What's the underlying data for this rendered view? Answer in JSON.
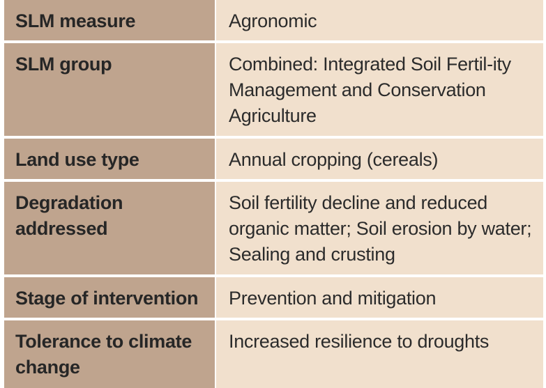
{
  "table": {
    "rows": [
      {
        "key": "SLM measure",
        "value": "Agronomic"
      },
      {
        "key": "SLM group",
        "value": "Combined: Integrated Soil Fertil-ity Management and Conservation Agriculture"
      },
      {
        "key": "Land use type",
        "value": "Annual cropping (cereals)"
      },
      {
        "key": "Degradation addressed",
        "value": "Soil fertility decline and reduced organic matter; Soil erosion by water; Sealing and crusting"
      },
      {
        "key": "Stage of intervention",
        "value": "Prevention and mitigation"
      },
      {
        "key": "Tolerance to climate change",
        "value": "Increased resilience to droughts"
      }
    ]
  },
  "colors": {
    "key_background": "#bfa48e",
    "value_background": "#f1e0cd"
  }
}
